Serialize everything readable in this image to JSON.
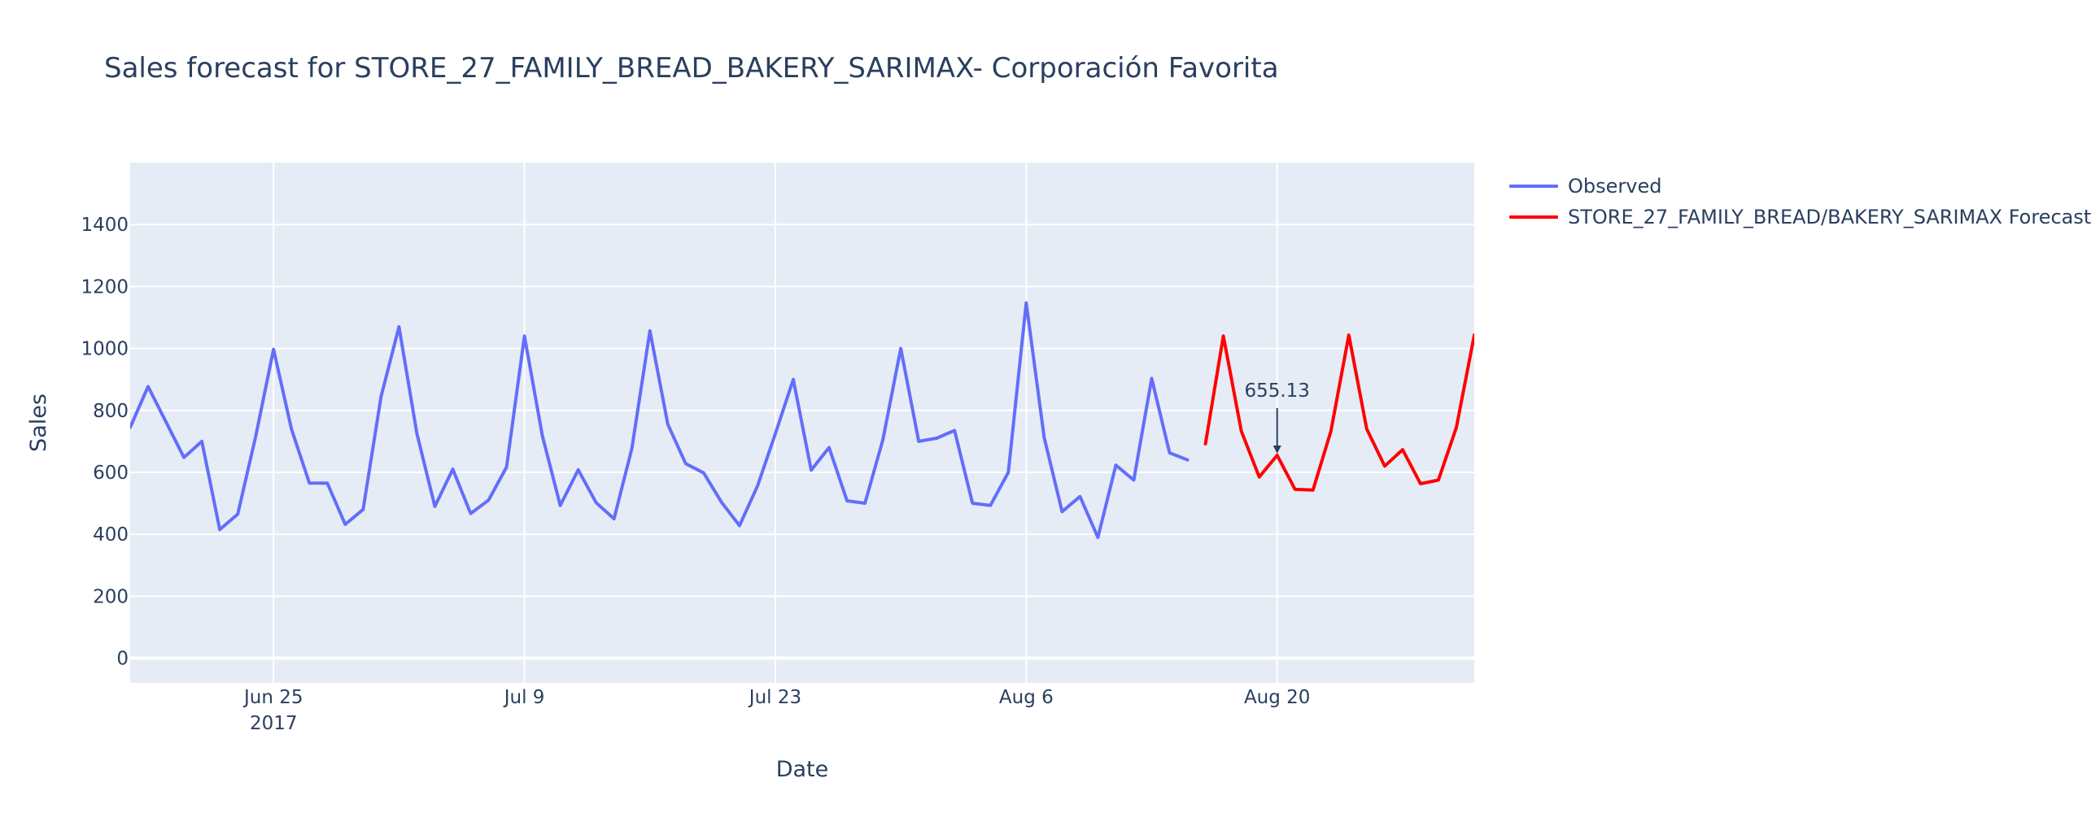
{
  "chart_data": {
    "type": "line",
    "title": "Sales forecast for STORE_27_FAMILY_BREAD_BAKERY_SARIMAX- Corporación Favorita",
    "xlabel": "Date",
    "ylabel": "Sales",
    "x_range": [
      "2017-06-17",
      "2017-08-31"
    ],
    "ylim": [
      -80,
      1600
    ],
    "y_ticks": [
      0,
      200,
      400,
      600,
      800,
      1000,
      1200,
      1400
    ],
    "x_ticks": [
      {
        "date": "2017-06-25",
        "label": "Jun 25",
        "sublabel": "2017"
      },
      {
        "date": "2017-07-09",
        "label": "Jul 9",
        "sublabel": ""
      },
      {
        "date": "2017-07-23",
        "label": "Jul 23",
        "sublabel": ""
      },
      {
        "date": "2017-08-06",
        "label": "Aug 6",
        "sublabel": ""
      },
      {
        "date": "2017-08-20",
        "label": "Aug 20",
        "sublabel": ""
      }
    ],
    "grid": true,
    "legend_position": "top-right outside",
    "background_color": "#e5ecf6",
    "series": [
      {
        "name": "Observed",
        "color": "#636efa",
        "points": [
          [
            "2017-06-17",
            745
          ],
          [
            "2017-06-18",
            877
          ],
          [
            "2017-06-19",
            762
          ],
          [
            "2017-06-20",
            648
          ],
          [
            "2017-06-21",
            700
          ],
          [
            "2017-06-22",
            415
          ],
          [
            "2017-06-23",
            465
          ],
          [
            "2017-06-24",
            715
          ],
          [
            "2017-06-25",
            997
          ],
          [
            "2017-06-26",
            740
          ],
          [
            "2017-06-27",
            565
          ],
          [
            "2017-06-28",
            565
          ],
          [
            "2017-06-29",
            432
          ],
          [
            "2017-06-30",
            480
          ],
          [
            "2017-07-01",
            845
          ],
          [
            "2017-07-02",
            1070
          ],
          [
            "2017-07-03",
            725
          ],
          [
            "2017-07-04",
            490
          ],
          [
            "2017-07-05",
            610
          ],
          [
            "2017-07-06",
            467
          ],
          [
            "2017-07-07",
            510
          ],
          [
            "2017-07-08",
            617
          ],
          [
            "2017-07-09",
            1040
          ],
          [
            "2017-07-10",
            718
          ],
          [
            "2017-07-11",
            493
          ],
          [
            "2017-07-12",
            608
          ],
          [
            "2017-07-13",
            502
          ],
          [
            "2017-07-14",
            450
          ],
          [
            "2017-07-15",
            678
          ],
          [
            "2017-07-16",
            1057
          ],
          [
            "2017-07-17",
            755
          ],
          [
            "2017-07-18",
            628
          ],
          [
            "2017-07-19",
            598
          ],
          [
            "2017-07-20",
            503
          ],
          [
            "2017-07-21",
            428
          ],
          [
            "2017-07-22",
            555
          ],
          [
            "2017-07-23",
            725
          ],
          [
            "2017-07-24",
            900
          ],
          [
            "2017-07-25",
            607
          ],
          [
            "2017-07-26",
            680
          ],
          [
            "2017-07-27",
            508
          ],
          [
            "2017-07-28",
            500
          ],
          [
            "2017-07-29",
            705
          ],
          [
            "2017-07-30",
            1000
          ],
          [
            "2017-07-31",
            700
          ],
          [
            "2017-08-01",
            710
          ],
          [
            "2017-08-02",
            735
          ],
          [
            "2017-08-03",
            500
          ],
          [
            "2017-08-04",
            493
          ],
          [
            "2017-08-05",
            600
          ],
          [
            "2017-08-06",
            1147
          ],
          [
            "2017-08-07",
            712
          ],
          [
            "2017-08-08",
            473
          ],
          [
            "2017-08-09",
            522
          ],
          [
            "2017-08-10",
            390
          ],
          [
            "2017-08-11",
            623
          ],
          [
            "2017-08-12",
            575
          ],
          [
            "2017-08-13",
            903
          ],
          [
            "2017-08-14",
            663
          ],
          [
            "2017-08-15",
            640
          ]
        ]
      },
      {
        "name": "STORE_27_FAMILY_BREAD/BAKERY_SARIMAX Forecast",
        "color": "#ff0000",
        "points": [
          [
            "2017-08-16",
            692
          ],
          [
            "2017-08-17",
            1040
          ],
          [
            "2017-08-18",
            733
          ],
          [
            "2017-08-19",
            585
          ],
          [
            "2017-08-20",
            655.13
          ],
          [
            "2017-08-21",
            545
          ],
          [
            "2017-08-22",
            543
          ],
          [
            "2017-08-23",
            733
          ],
          [
            "2017-08-24",
            1043
          ],
          [
            "2017-08-25",
            740
          ],
          [
            "2017-08-26",
            620
          ],
          [
            "2017-08-27",
            673
          ],
          [
            "2017-08-28",
            563
          ],
          [
            "2017-08-29",
            575
          ],
          [
            "2017-08-30",
            745
          ],
          [
            "2017-08-31",
            1043
          ]
        ]
      }
    ],
    "annotations": [
      {
        "x": "2017-08-20",
        "y": 655.13,
        "text": "655.13"
      }
    ]
  }
}
